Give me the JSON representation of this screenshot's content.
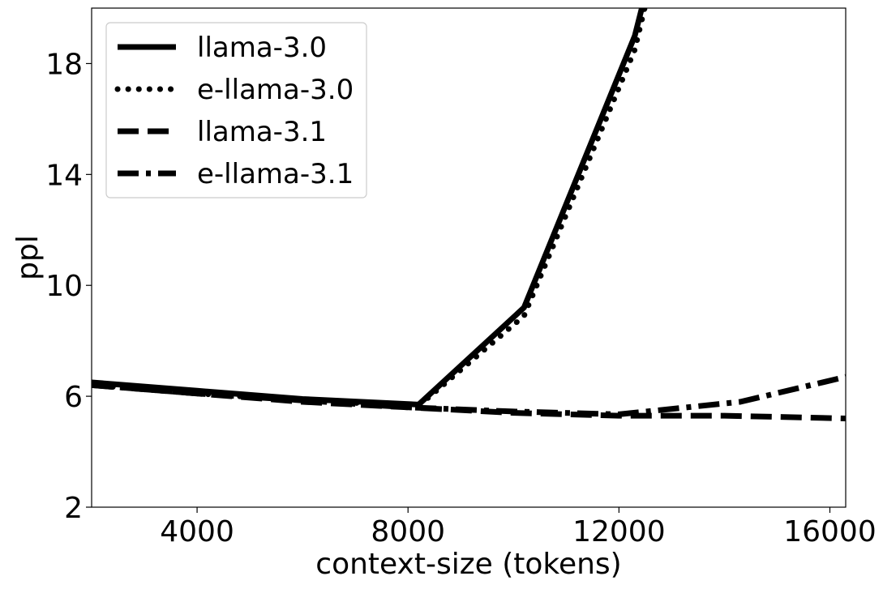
{
  "chart_data": {
    "type": "line",
    "title": "",
    "xlabel": "context-size (tokens)",
    "ylabel": "ppl",
    "xlim": [
      2000,
      16300
    ],
    "ylim": [
      2,
      20
    ],
    "xticks": [
      4000,
      8000,
      12000,
      16000
    ],
    "yticks": [
      2,
      6,
      10,
      14,
      18
    ],
    "grid": false,
    "legend_position": "top-left",
    "colors": {
      "line": "#000000",
      "frame": "#000000",
      "legend_border": "#cccccc"
    },
    "series": [
      {
        "name": "llama-3.0",
        "style": "solid",
        "points": [
          [
            2000,
            6.5
          ],
          [
            4000,
            6.2
          ],
          [
            6000,
            5.9
          ],
          [
            8200,
            5.7
          ],
          [
            10200,
            9.2
          ],
          [
            12300,
            19.0
          ],
          [
            12500,
            20.5
          ]
        ]
      },
      {
        "name": "e-llama-3.0",
        "style": "dotted",
        "points": [
          [
            2000,
            6.4
          ],
          [
            4000,
            6.1
          ],
          [
            6000,
            5.85
          ],
          [
            8200,
            5.65
          ],
          [
            10200,
            8.9
          ],
          [
            12300,
            18.5
          ],
          [
            12550,
            20.5
          ]
        ]
      },
      {
        "name": "llama-3.1",
        "style": "dashed",
        "points": [
          [
            2000,
            6.4
          ],
          [
            4000,
            6.1
          ],
          [
            6000,
            5.8
          ],
          [
            8000,
            5.6
          ],
          [
            10000,
            5.4
          ],
          [
            12000,
            5.3
          ],
          [
            14000,
            5.3
          ],
          [
            16300,
            5.2
          ]
        ]
      },
      {
        "name": "e-llama-3.1",
        "style": "dashdot",
        "points": [
          [
            2000,
            6.4
          ],
          [
            4000,
            6.1
          ],
          [
            6000,
            5.85
          ],
          [
            8000,
            5.6
          ],
          [
            10000,
            5.45
          ],
          [
            12000,
            5.35
          ],
          [
            14300,
            5.8
          ],
          [
            16300,
            6.7
          ]
        ]
      }
    ]
  }
}
